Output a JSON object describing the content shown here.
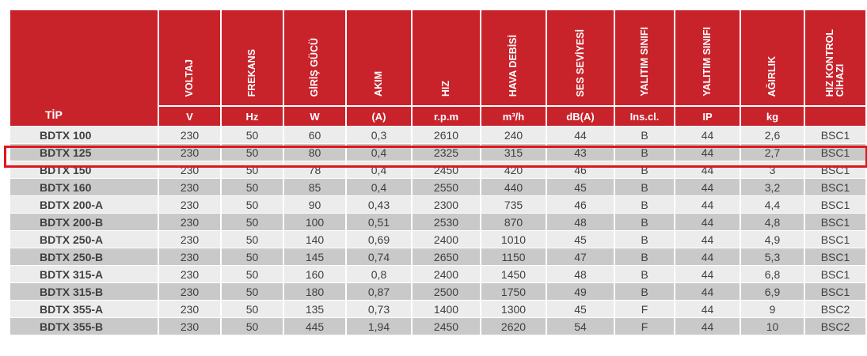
{
  "columns": [
    {
      "key": "tip",
      "label": "TİP",
      "unit": ""
    },
    {
      "key": "voltaj",
      "label": "VOLTAJ",
      "unit": "V"
    },
    {
      "key": "frekans",
      "label": "FREKANS",
      "unit": "Hz"
    },
    {
      "key": "giris_gucu",
      "label": "GİRİŞ GÜCÜ",
      "unit": "W"
    },
    {
      "key": "akim",
      "label": "AKIM",
      "unit": "(A)"
    },
    {
      "key": "hiz",
      "label": "HIZ",
      "unit": "r.p.m"
    },
    {
      "key": "hava_debisi",
      "label": "HAVA DEBİSİ",
      "unit": "m³/h"
    },
    {
      "key": "ses_seviyesi",
      "label": "SES SEVİYESİ",
      "unit": "dB(A)"
    },
    {
      "key": "yalitim_sinifi_ins",
      "label": "YALITIM SINIFI",
      "unit": "Ins.cl."
    },
    {
      "key": "yalitim_sinifi_ip",
      "label": "YALITIM SINIFI",
      "unit": "IP"
    },
    {
      "key": "agirlik",
      "label": "AĞIRLIK",
      "unit": "kg"
    },
    {
      "key": "hiz_kontrol",
      "label": "HIZ KONTROL\nCİHAZI",
      "unit": ""
    }
  ],
  "rows": [
    [
      "BDTX 100",
      "230",
      "50",
      "60",
      "0,3",
      "2610",
      "240",
      "44",
      "B",
      "44",
      "2,6",
      "BSC1"
    ],
    [
      "BDTX 125",
      "230",
      "50",
      "80",
      "0,4",
      "2325",
      "315",
      "43",
      "B",
      "44",
      "2,7",
      "BSC1"
    ],
    [
      "BDTX 150",
      "230",
      "50",
      "78",
      "0,4",
      "2450",
      "420",
      "46",
      "B",
      "44",
      "3",
      "BSC1"
    ],
    [
      "BDTX 160",
      "230",
      "50",
      "85",
      "0,4",
      "2550",
      "440",
      "45",
      "B",
      "44",
      "3,2",
      "BSC1"
    ],
    [
      "BDTX 200-A",
      "230",
      "50",
      "90",
      "0,43",
      "2300",
      "735",
      "46",
      "B",
      "44",
      "4,4",
      "BSC1"
    ],
    [
      "BDTX 200-B",
      "230",
      "50",
      "100",
      "0,51",
      "2530",
      "870",
      "48",
      "B",
      "44",
      "4,8",
      "BSC1"
    ],
    [
      "BDTX 250-A",
      "230",
      "50",
      "140",
      "0,69",
      "2400",
      "1010",
      "45",
      "B",
      "44",
      "4,9",
      "BSC1"
    ],
    [
      "BDTX 250-B",
      "230",
      "50",
      "145",
      "0,74",
      "2650",
      "1150",
      "47",
      "B",
      "44",
      "5,3",
      "BSC1"
    ],
    [
      "BDTX 315-A",
      "230",
      "50",
      "160",
      "0,8",
      "2400",
      "1450",
      "48",
      "B",
      "44",
      "6,8",
      "BSC1"
    ],
    [
      "BDTX 315-B",
      "230",
      "50",
      "180",
      "0,87",
      "2500",
      "1750",
      "49",
      "B",
      "44",
      "6,9",
      "BSC1"
    ],
    [
      "BDTX 355-A",
      "230",
      "50",
      "135",
      "0,73",
      "1400",
      "1300",
      "45",
      "F",
      "44",
      "9",
      "BSC2"
    ],
    [
      "BDTX 355-B",
      "230",
      "50",
      "445",
      "1,94",
      "2450",
      "2620",
      "54",
      "F",
      "44",
      "10",
      "BSC2"
    ]
  ],
  "highlighted_row": 1,
  "colors": {
    "header": "#c8232b",
    "row_light": "#ececec",
    "row_dark": "#c9c9c9",
    "highlight": "#e0161e"
  }
}
